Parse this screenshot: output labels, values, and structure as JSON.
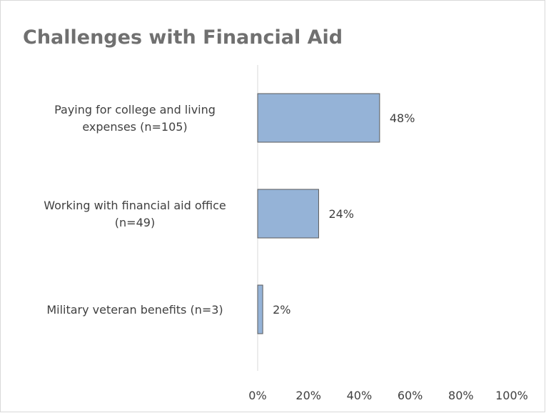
{
  "chart_data": {
    "type": "bar",
    "orientation": "horizontal",
    "title": "Challenges with Financial Aid",
    "categories": [
      [
        "Paying for college and living",
        "expenses (n=105)"
      ],
      [
        "Working with financial aid office",
        "(n=49)"
      ],
      [
        "Military veteran benefits (n=3)"
      ]
    ],
    "values": [
      48,
      24,
      2
    ],
    "value_labels": [
      "48%",
      "24%",
      "2%"
    ],
    "xlim": [
      0,
      100
    ],
    "x_ticks": [
      0,
      20,
      40,
      60,
      80,
      100
    ],
    "x_tick_labels": [
      "0%",
      "20%",
      "40%",
      "60%",
      "80%",
      "100%"
    ],
    "grid": false,
    "legend": "none",
    "colors": {
      "bar_fill": "#95b3d7",
      "bar_stroke": "#5a5a5a",
      "axis": "#d9d9d9",
      "title": "#707070",
      "text": "#404040"
    }
  }
}
